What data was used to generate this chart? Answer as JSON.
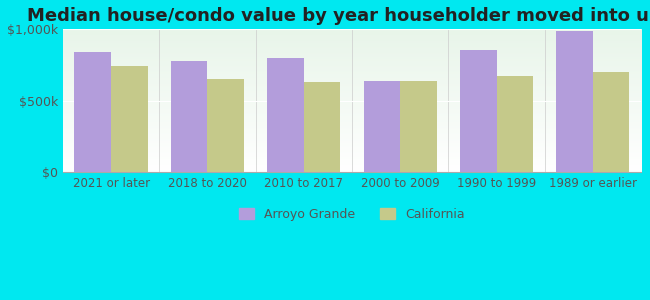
{
  "title": "Median house/condo value by year householder moved into unit",
  "categories": [
    "2021 or later",
    "2018 to 2020",
    "2010 to 2017",
    "2000 to 2009",
    "1990 to 1999",
    "1989 or earlier"
  ],
  "arroyo_grande": [
    840000,
    775000,
    800000,
    640000,
    855000,
    990000
  ],
  "california": [
    740000,
    655000,
    630000,
    635000,
    675000,
    700000
  ],
  "arroyo_color": "#b39ddb",
  "california_color": "#c5c98a",
  "background_color": "#00e8f0",
  "plot_bg_top": "#e8f5e9",
  "plot_bg_bottom": "#f8fff8",
  "ylim": [
    0,
    1000000
  ],
  "yticks": [
    0,
    500000,
    1000000
  ],
  "ytick_labels": [
    "$0",
    "$500k",
    "$1,000k"
  ],
  "title_fontsize": 13,
  "legend_labels": [
    "Arroyo Grande",
    "California"
  ],
  "bar_width": 0.38
}
